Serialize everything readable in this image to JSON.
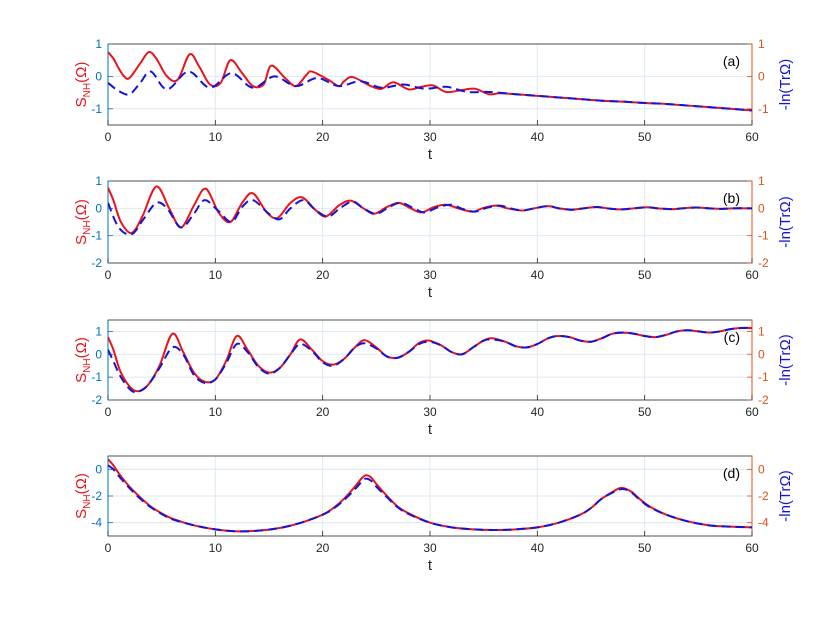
{
  "colors": {
    "red": "#e8141c",
    "blue": "#1414d9",
    "left_axis": "#0072bd",
    "right_axis": "#d95319",
    "grid": "#dfe8f1",
    "axes": "#262626"
  },
  "chart_data": [
    {
      "type": "line",
      "panel_label": "(a)",
      "xlabel": "t",
      "ylabel_left": "S_NH(Ω)",
      "ylabel_right": "-ln(TrΩ)",
      "xlim": [
        0,
        60
      ],
      "ylim": [
        -1.5,
        1
      ],
      "xticks": [
        "0",
        "10",
        "20",
        "30",
        "40",
        "50",
        "60"
      ],
      "yticks_left": [
        "-1",
        "0",
        "1"
      ],
      "yticks_right": [
        "-1",
        "0",
        "1"
      ],
      "grid": true,
      "series": [
        {
          "style": "solid",
          "color": "red",
          "axis": "left",
          "x": [
            0,
            0.5,
            1,
            1.5,
            2,
            3,
            3.8,
            4.5,
            5.5,
            6.5,
            7.6,
            8.5,
            9.5,
            10.5,
            11.4,
            12.5,
            13.5,
            14.5,
            15.2,
            16.5,
            17.5,
            18.5,
            19,
            20.5,
            21.5,
            22,
            22.8,
            24.5,
            25.5,
            26.6,
            28,
            29.2,
            30.3,
            31.5,
            33,
            34.2,
            35.5,
            36.5,
            38,
            40,
            42,
            44,
            46,
            48,
            50,
            52,
            54,
            56,
            58,
            60
          ],
          "y": [
            0.75,
            0.55,
            0.25,
            0.0,
            -0.05,
            0.4,
            0.75,
            0.55,
            0.0,
            -0.1,
            0.68,
            0.3,
            -0.25,
            -0.2,
            0.5,
            0.1,
            -0.3,
            -0.25,
            0.33,
            -0.05,
            -0.3,
            0.05,
            0.15,
            -0.1,
            -0.3,
            -0.15,
            -0.02,
            -0.3,
            -0.38,
            -0.18,
            -0.4,
            -0.32,
            -0.28,
            -0.48,
            -0.42,
            -0.38,
            -0.55,
            -0.52,
            -0.55,
            -0.6,
            -0.65,
            -0.7,
            -0.75,
            -0.78,
            -0.82,
            -0.85,
            -0.9,
            -0.95,
            -1.0,
            -1.05
          ]
        },
        {
          "style": "dashed",
          "color": "blue",
          "axis": "right",
          "x": [
            0,
            1,
            2,
            3,
            4,
            5.5,
            7.5,
            9.5,
            11.5,
            13.5,
            15.5,
            17.5,
            19.5,
            21.5,
            23.5,
            25.5,
            27.5,
            29.5,
            31.5,
            33.5,
            35.5,
            38,
            40,
            42,
            44,
            46,
            48,
            50,
            52,
            54,
            56,
            58,
            60
          ],
          "y": [
            -0.2,
            -0.45,
            -0.55,
            -0.2,
            0.15,
            -0.4,
            0.15,
            -0.35,
            0.1,
            -0.35,
            0.0,
            -0.3,
            -0.05,
            -0.3,
            -0.15,
            -0.35,
            -0.25,
            -0.38,
            -0.32,
            -0.48,
            -0.48,
            -0.55,
            -0.6,
            -0.65,
            -0.7,
            -0.75,
            -0.78,
            -0.82,
            -0.85,
            -0.9,
            -0.95,
            -1.0,
            -1.05
          ]
        }
      ]
    },
    {
      "type": "line",
      "panel_label": "(b)",
      "xlabel": "t",
      "ylabel_left": "S_NH(Ω)",
      "ylabel_right": "-ln(TrΩ)",
      "xlim": [
        0,
        60
      ],
      "ylim": [
        -2,
        1
      ],
      "xticks": [
        "0",
        "10",
        "20",
        "30",
        "40",
        "50",
        "60"
      ],
      "yticks_left": [
        "-2",
        "-1",
        "0",
        "1"
      ],
      "yticks_right": [
        "-2",
        "-1",
        "0",
        "1"
      ],
      "grid": true,
      "series": [
        {
          "style": "solid",
          "color": "red",
          "axis": "left",
          "x": [
            0,
            0.5,
            1.2,
            2.2,
            3.2,
            4.5,
            5.7,
            6.8,
            8,
            9.1,
            10.3,
            11.4,
            12.5,
            13.5,
            14.8,
            15.8,
            17,
            18.1,
            19.3,
            20.3,
            21.5,
            22.6,
            23.8,
            24.8,
            26,
            27.1,
            28.2,
            29.2,
            30.4,
            31.5,
            32.8,
            34,
            35,
            36.2,
            37.2,
            38.6,
            39.7,
            41,
            42,
            43.2,
            44.3,
            45.5,
            46.5,
            47.8,
            49,
            50.2,
            51.2,
            52.5,
            53.5,
            54.8,
            56,
            57.2,
            58.2,
            60
          ],
          "y": [
            0.75,
            0.3,
            -0.5,
            -0.9,
            -0.3,
            0.8,
            0.0,
            -0.7,
            0.1,
            0.72,
            -0.15,
            -0.5,
            0.2,
            0.55,
            -0.15,
            -0.35,
            0.2,
            0.4,
            -0.05,
            -0.3,
            0.1,
            0.28,
            0.0,
            -0.2,
            0.05,
            0.2,
            0.0,
            -0.15,
            0.05,
            0.13,
            -0.02,
            -0.12,
            0.02,
            0.1,
            0.0,
            -0.08,
            0.0,
            0.08,
            0.0,
            -0.05,
            0.0,
            0.05,
            0.0,
            -0.04,
            0.0,
            0.04,
            0.0,
            -0.03,
            0.0,
            0.03,
            0.0,
            -0.02,
            0.0,
            0.0
          ]
        },
        {
          "style": "dashed",
          "color": "blue",
          "axis": "right",
          "x": [
            0,
            1,
            2.2,
            3.3,
            4.5,
            5.5,
            6.8,
            8,
            9,
            10.3,
            11.5,
            12.5,
            13.5,
            15,
            16,
            17,
            18.2,
            19.3,
            20.5,
            21.6,
            22.8,
            23.8,
            25,
            26.2,
            27.3,
            28.5,
            29.5,
            30.8,
            32,
            33,
            34.2,
            35.3,
            36.5,
            37.5,
            38.6,
            39.7,
            41,
            42,
            43.2,
            44.3,
            45.5,
            46.5,
            47.8,
            49,
            50.2,
            51.2,
            52.5,
            53.5,
            54.8,
            56,
            57.2,
            58.2,
            60
          ],
          "y": [
            0.2,
            -0.7,
            -0.95,
            -0.4,
            0.2,
            0.0,
            -0.7,
            -0.2,
            0.3,
            -0.1,
            -0.5,
            0.05,
            0.3,
            -0.2,
            -0.4,
            0.0,
            0.3,
            -0.05,
            -0.3,
            0.0,
            0.25,
            0.0,
            -0.2,
            0.05,
            0.2,
            0.0,
            -0.15,
            0.05,
            0.13,
            -0.02,
            -0.12,
            0.02,
            0.1,
            0.0,
            -0.08,
            0.0,
            0.08,
            0.0,
            -0.05,
            0.0,
            0.05,
            0.0,
            -0.04,
            0.0,
            0.04,
            0.0,
            -0.03,
            0.0,
            0.03,
            0.0,
            -0.02,
            0.0,
            0.0
          ]
        }
      ]
    },
    {
      "type": "line",
      "panel_label": "(c)",
      "xlabel": "t",
      "ylabel_left": "S_NH(Ω)",
      "ylabel_right": "-ln(TrΩ)",
      "xlim": [
        0,
        60
      ],
      "ylim": [
        -2,
        1.5
      ],
      "xticks": [
        "0",
        "10",
        "20",
        "30",
        "40",
        "50",
        "60"
      ],
      "yticks_left": [
        "-2",
        "-1",
        "0",
        "1"
      ],
      "yticks_right": [
        "-2",
        "-1",
        "0",
        "1"
      ],
      "grid": true,
      "series": [
        {
          "style": "solid",
          "color": "red",
          "axis": "left",
          "x": [
            0,
            0.5,
            1.2,
            2.2,
            3,
            3.8,
            4.8,
            6,
            7,
            8,
            9,
            10,
            11,
            12,
            13,
            14,
            15,
            16,
            17,
            17.9,
            19,
            20,
            21,
            22,
            23,
            23.9,
            25,
            26,
            27,
            28,
            29,
            29.9,
            31,
            32,
            33,
            34,
            35,
            35.8,
            37,
            38,
            39,
            40,
            41,
            41.9,
            43,
            44,
            45,
            46,
            47,
            48,
            49,
            50,
            51,
            52,
            53,
            54,
            55,
            56,
            57,
            58,
            59,
            60
          ],
          "y": [
            0.75,
            0.2,
            -0.8,
            -1.5,
            -1.6,
            -1.3,
            -0.5,
            0.9,
            0.1,
            -0.8,
            -1.2,
            -1.1,
            -0.3,
            0.8,
            0.2,
            -0.5,
            -0.8,
            -0.6,
            0.0,
            0.65,
            0.2,
            -0.3,
            -0.45,
            -0.2,
            0.3,
            0.62,
            0.3,
            -0.1,
            -0.15,
            0.1,
            0.5,
            0.6,
            0.4,
            0.1,
            0.0,
            0.3,
            0.6,
            0.7,
            0.55,
            0.35,
            0.3,
            0.45,
            0.7,
            0.8,
            0.75,
            0.6,
            0.55,
            0.7,
            0.9,
            0.95,
            0.9,
            0.8,
            0.75,
            0.85,
            1.0,
            1.05,
            1.0,
            0.95,
            1.0,
            1.1,
            1.15,
            1.15
          ]
        },
        {
          "style": "dashed",
          "color": "blue",
          "axis": "right",
          "x": [
            0,
            0.5,
            1.2,
            2.2,
            3,
            3.8,
            4.8,
            6,
            7,
            8,
            9,
            10,
            11,
            12,
            13,
            14,
            15,
            16,
            17,
            17.9,
            19,
            20,
            21,
            22,
            23,
            23.9,
            25,
            26,
            27,
            28,
            29,
            29.9,
            31,
            32,
            33,
            34,
            35,
            35.8,
            37,
            38,
            39,
            40,
            41,
            41.9,
            43,
            44,
            45,
            46,
            47,
            48,
            49,
            50,
            51,
            52,
            53,
            54,
            55,
            56,
            57,
            58,
            59,
            60
          ],
          "y": [
            0.2,
            -0.3,
            -1.0,
            -1.6,
            -1.6,
            -1.3,
            -0.6,
            0.3,
            0.0,
            -0.9,
            -1.25,
            -1.1,
            -0.4,
            0.45,
            0.1,
            -0.55,
            -0.85,
            -0.6,
            0.0,
            0.45,
            0.15,
            -0.35,
            -0.5,
            -0.2,
            0.3,
            0.48,
            0.25,
            -0.1,
            -0.15,
            0.1,
            0.45,
            0.55,
            0.4,
            0.1,
            0.0,
            0.3,
            0.6,
            0.65,
            0.55,
            0.35,
            0.3,
            0.45,
            0.7,
            0.8,
            0.75,
            0.6,
            0.55,
            0.7,
            0.9,
            0.95,
            0.9,
            0.8,
            0.75,
            0.85,
            1.0,
            1.05,
            1.0,
            0.95,
            1.0,
            1.1,
            1.15,
            1.15
          ]
        }
      ]
    },
    {
      "type": "line",
      "panel_label": "(d)",
      "xlabel": "t",
      "ylabel_left": "S_NH(Ω)",
      "ylabel_right": "-ln(TrΩ)",
      "xlim": [
        0,
        60
      ],
      "ylim": [
        -5,
        1
      ],
      "xticks": [
        "0",
        "10",
        "20",
        "30",
        "40",
        "50",
        "60"
      ],
      "yticks_left": [
        "-4",
        "-2",
        "0"
      ],
      "yticks_right": [
        "-4",
        "-2",
        "0"
      ],
      "grid": true,
      "series": [
        {
          "style": "solid",
          "color": "red",
          "axis": "left",
          "x": [
            0,
            0.5,
            1,
            2,
            3,
            4,
            5,
            6,
            8,
            10,
            12,
            14,
            16,
            18,
            20,
            21,
            22,
            23,
            23.6,
            24,
            24.5,
            25,
            26,
            27,
            28,
            30,
            32,
            34,
            36,
            38,
            40,
            42,
            44,
            45,
            46,
            47,
            47.7,
            48.2,
            48.8,
            49.5,
            50.5,
            52,
            54,
            56,
            58,
            60
          ],
          "y": [
            0.75,
            0.3,
            -0.3,
            -1.3,
            -2.1,
            -2.8,
            -3.3,
            -3.7,
            -4.2,
            -4.5,
            -4.65,
            -4.6,
            -4.4,
            -4.0,
            -3.4,
            -2.9,
            -2.2,
            -1.3,
            -0.7,
            -0.45,
            -0.6,
            -1.1,
            -2.0,
            -2.8,
            -3.3,
            -4.0,
            -4.35,
            -4.5,
            -4.55,
            -4.5,
            -4.35,
            -4.0,
            -3.4,
            -2.9,
            -2.2,
            -1.7,
            -1.4,
            -1.45,
            -1.7,
            -2.2,
            -2.8,
            -3.4,
            -3.9,
            -4.2,
            -4.3,
            -4.35
          ]
        },
        {
          "style": "dashed",
          "color": "blue",
          "axis": "right",
          "x": [
            0,
            0.5,
            1,
            2,
            3,
            4,
            5,
            6,
            8,
            10,
            12,
            14,
            16,
            18,
            20,
            21,
            22,
            23,
            23.6,
            24,
            24.5,
            25,
            26,
            27,
            28,
            30,
            32,
            34,
            36,
            38,
            40,
            42,
            44,
            45,
            46,
            47,
            47.7,
            48.2,
            48.8,
            49.5,
            50.5,
            52,
            54,
            56,
            58,
            60
          ],
          "y": [
            0.3,
            0.0,
            -0.5,
            -1.4,
            -2.2,
            -2.85,
            -3.35,
            -3.75,
            -4.2,
            -4.5,
            -4.65,
            -4.6,
            -4.4,
            -4.0,
            -3.4,
            -2.95,
            -2.3,
            -1.5,
            -0.95,
            -0.7,
            -0.85,
            -1.3,
            -2.1,
            -2.85,
            -3.35,
            -4.0,
            -4.35,
            -4.5,
            -4.55,
            -4.5,
            -4.35,
            -4.0,
            -3.4,
            -2.9,
            -2.2,
            -1.75,
            -1.5,
            -1.5,
            -1.75,
            -2.25,
            -2.85,
            -3.4,
            -3.9,
            -4.2,
            -4.3,
            -4.35
          ]
        }
      ]
    }
  ]
}
